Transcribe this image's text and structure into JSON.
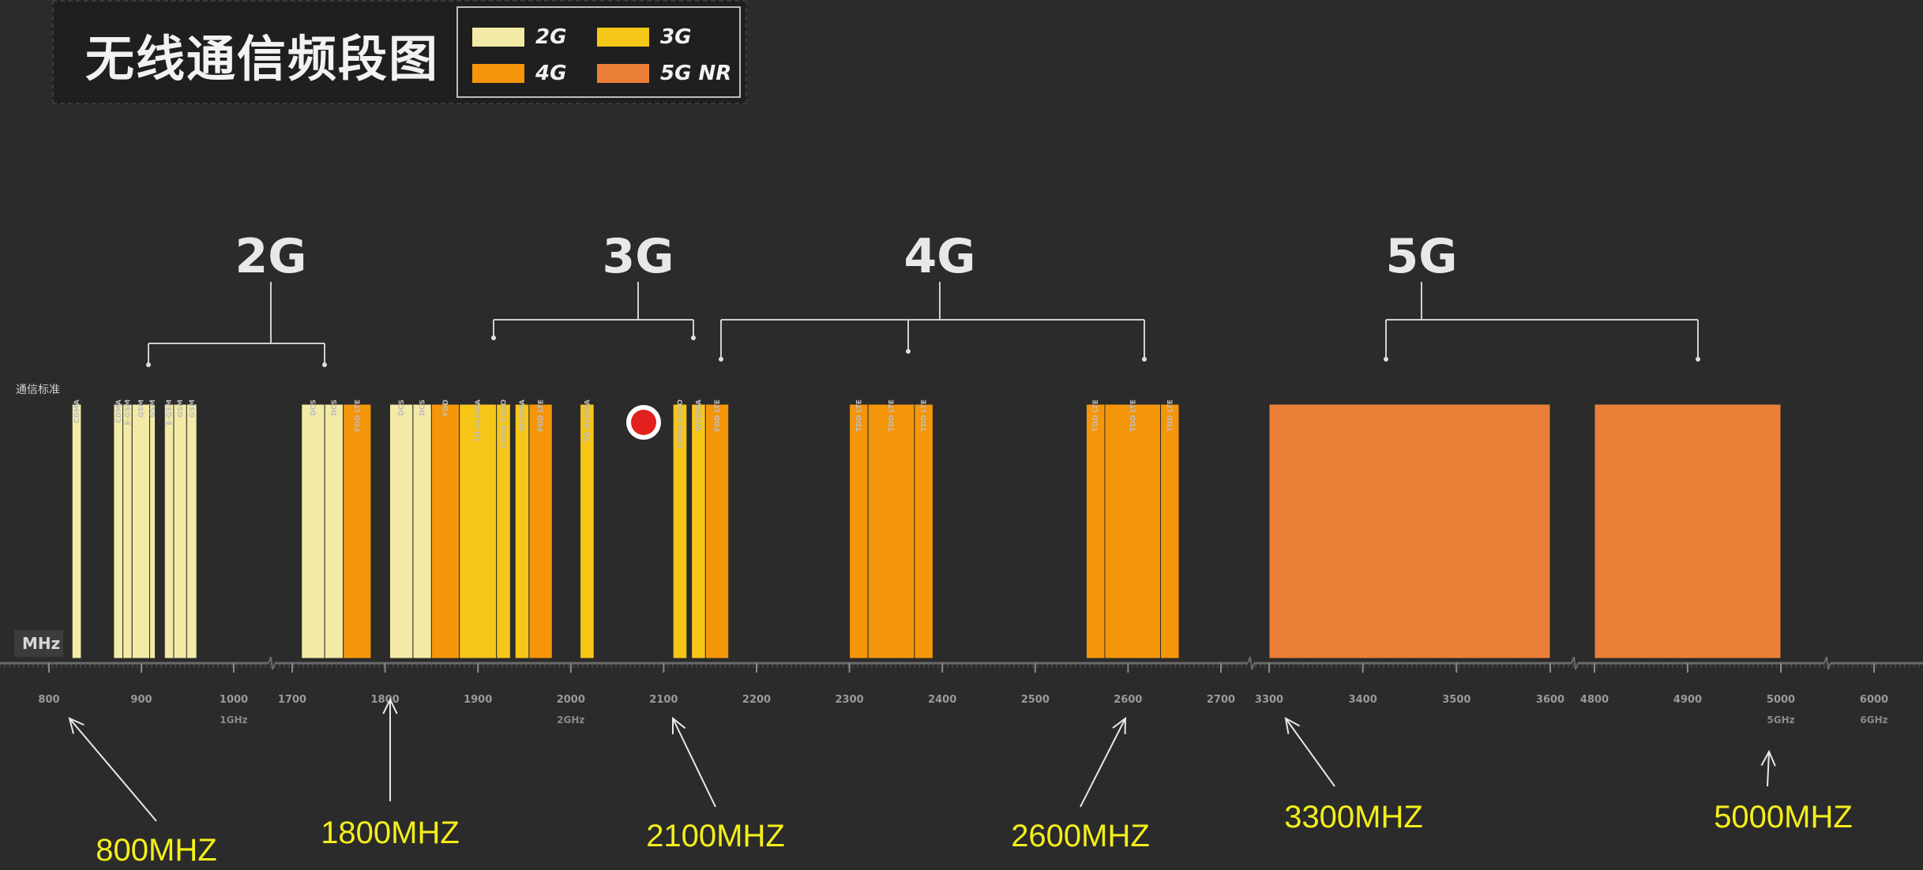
{
  "header": {
    "title": "无线通信频段图"
  },
  "legend": [
    {
      "label": "2G",
      "color": "#f3eaa6"
    },
    {
      "label": "3G",
      "color": "#f6c619"
    },
    {
      "label": "4G",
      "color": "#f5960a"
    },
    {
      "label": "5G NR",
      "color": "#ea8038"
    }
  ],
  "colors": {
    "background": "#2b2b2b",
    "2G": "#f3eaa6",
    "3G": "#f6c619",
    "4G": "#f5960a",
    "5G": "#ea8038",
    "annotation": "#f4ef1a"
  },
  "chart_data": {
    "type": "bar",
    "row_label": "通信标准",
    "unit_label": "MHz",
    "generation_labels": [
      "2G",
      "3G",
      "4G",
      "5G"
    ],
    "axis_ticks": [
      "800",
      "900",
      "1000",
      "1700",
      "1800",
      "1900",
      "2000",
      "2100",
      "2200",
      "2300",
      "2400",
      "2500",
      "2600",
      "2700",
      "3300",
      "3400",
      "3500",
      "3600",
      "4800",
      "4900",
      "5000",
      "6000"
    ],
    "sub_ticks": [
      "1GHz",
      "2GHz",
      "5GHz",
      "6GHz"
    ],
    "bands": [
      {
        "label": "CDMA",
        "start_mhz": 825,
        "end_mhz": 835,
        "gen": "2G"
      },
      {
        "label": "CDMA",
        "start_mhz": 870,
        "end_mhz": 880,
        "gen": "2G"
      },
      {
        "label": "E-GSM",
        "start_mhz": 880,
        "end_mhz": 890,
        "gen": "2G"
      },
      {
        "label": "GSM",
        "start_mhz": 890,
        "end_mhz": 909,
        "gen": "2G"
      },
      {
        "label": "GSM",
        "start_mhz": 909,
        "end_mhz": 915,
        "gen": "2G"
      },
      {
        "label": "E-GSM",
        "start_mhz": 925,
        "end_mhz": 935,
        "gen": "2G"
      },
      {
        "label": "GSM",
        "start_mhz": 935,
        "end_mhz": 949,
        "gen": "2G"
      },
      {
        "label": "GSM",
        "start_mhz": 949,
        "end_mhz": 960,
        "gen": "2G"
      },
      {
        "label": "DCS",
        "start_mhz": 1710,
        "end_mhz": 1735,
        "gen": "2G"
      },
      {
        "label": "DCS",
        "start_mhz": 1735,
        "end_mhz": 1755,
        "gen": "2G"
      },
      {
        "label": "FDD LTE",
        "start_mhz": 1755,
        "end_mhz": 1785,
        "gen": "4G"
      },
      {
        "label": "DCS",
        "start_mhz": 1805,
        "end_mhz": 1830,
        "gen": "2G"
      },
      {
        "label": "DCS",
        "start_mhz": 1830,
        "end_mhz": 1850,
        "gen": "2G"
      },
      {
        "label": "FDD",
        "start_mhz": 1850,
        "end_mhz": 1880,
        "gen": "4G"
      },
      {
        "label": "TD-SCDMA",
        "start_mhz": 1880,
        "end_mhz": 1920,
        "gen": "3G"
      },
      {
        "label": "CDMA-EVDO",
        "start_mhz": 1920,
        "end_mhz": 1935,
        "gen": "3G"
      },
      {
        "label": "WCDMA",
        "start_mhz": 1940,
        "end_mhz": 1955,
        "gen": "3G"
      },
      {
        "label": "FDD LTE",
        "start_mhz": 1955,
        "end_mhz": 1980,
        "gen": "4G"
      },
      {
        "label": "TD-SCDMA",
        "start_mhz": 2010,
        "end_mhz": 2025,
        "gen": "3G"
      },
      {
        "label": "CDMA-EVDO",
        "start_mhz": 2110,
        "end_mhz": 2125,
        "gen": "3G"
      },
      {
        "label": "WCDMA",
        "start_mhz": 2130,
        "end_mhz": 2145,
        "gen": "3G"
      },
      {
        "label": "FDD LTE",
        "start_mhz": 2145,
        "end_mhz": 2170,
        "gen": "4G"
      },
      {
        "label": "TDD LTE",
        "start_mhz": 2300,
        "end_mhz": 2320,
        "gen": "4G"
      },
      {
        "label": "TDD LTE",
        "start_mhz": 2320,
        "end_mhz": 2370,
        "gen": "4G"
      },
      {
        "label": "TDD LTE",
        "start_mhz": 2370,
        "end_mhz": 2390,
        "gen": "4G"
      },
      {
        "label": "TDD LTE",
        "start_mhz": 2555,
        "end_mhz": 2575,
        "gen": "4G"
      },
      {
        "label": "TDD LTE",
        "start_mhz": 2575,
        "end_mhz": 2635,
        "gen": "4G"
      },
      {
        "label": "TDD LTE",
        "start_mhz": 2635,
        "end_mhz": 2655,
        "gen": "4G"
      },
      {
        "label": "",
        "start_mhz": 3300,
        "end_mhz": 3600,
        "gen": "5G"
      },
      {
        "label": "",
        "start_mhz": 4800,
        "end_mhz": 5000,
        "gen": "5G"
      }
    ],
    "annotations": [
      "800MHZ",
      "1800MHZ",
      "2100MHZ",
      "2600MHZ",
      "3300MHZ",
      "5000MHZ"
    ]
  }
}
